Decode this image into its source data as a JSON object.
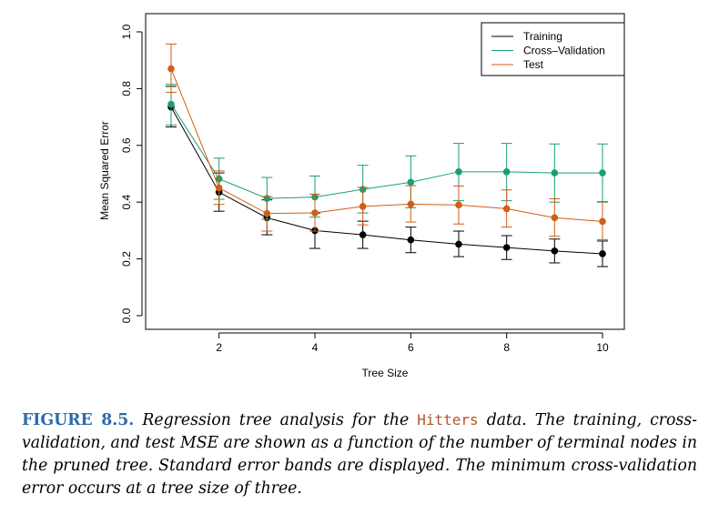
{
  "chart_data": {
    "type": "line",
    "xlabel": "Tree Size",
    "ylabel": "Mean Squared Error",
    "xlim": [
      0.6,
      10.4
    ],
    "ylim": [
      0.0,
      1.0
    ],
    "x_ticks": [
      2,
      4,
      6,
      8,
      10
    ],
    "y_ticks": [
      0.0,
      0.2,
      0.4,
      0.6,
      0.8,
      1.0
    ],
    "y_tick_labels": [
      "0.0",
      "0.2",
      "0.4",
      "0.6",
      "0.8",
      "1.0"
    ],
    "x": [
      1,
      2,
      3,
      4,
      5,
      6,
      7,
      8,
      9,
      10
    ],
    "legend_position": "top-right",
    "series": [
      {
        "name": "Training",
        "color": "#000000",
        "values": [
          0.735,
          0.435,
          0.345,
          0.3,
          0.285,
          0.267,
          0.252,
          0.24,
          0.228,
          0.218
        ],
        "err_low": [
          0.665,
          0.368,
          0.285,
          0.237,
          0.237,
          0.222,
          0.208,
          0.198,
          0.186,
          0.173
        ],
        "err_high": [
          0.808,
          0.503,
          0.408,
          0.362,
          0.333,
          0.312,
          0.298,
          0.282,
          0.27,
          0.263
        ]
      },
      {
        "name": "Cross–Validation",
        "color": "#1a9e76",
        "values": [
          0.745,
          0.482,
          0.413,
          0.418,
          0.445,
          0.47,
          0.507,
          0.507,
          0.503,
          0.503
        ],
        "err_low": [
          0.672,
          0.41,
          0.34,
          0.347,
          0.362,
          0.38,
          0.405,
          0.405,
          0.4,
          0.4
        ],
        "err_high": [
          0.815,
          0.555,
          0.487,
          0.492,
          0.53,
          0.563,
          0.607,
          0.607,
          0.605,
          0.605
        ]
      },
      {
        "name": "Test",
        "color": "#d05e15",
        "values": [
          0.87,
          0.45,
          0.36,
          0.362,
          0.385,
          0.393,
          0.39,
          0.377,
          0.345,
          0.332
        ],
        "err_low": [
          0.787,
          0.392,
          0.298,
          0.298,
          0.32,
          0.33,
          0.323,
          0.312,
          0.28,
          0.268
        ],
        "err_high": [
          0.957,
          0.51,
          0.42,
          0.428,
          0.452,
          0.458,
          0.457,
          0.443,
          0.412,
          0.402
        ]
      }
    ]
  },
  "caption": {
    "label": "FIGURE 8.5.",
    "text_before": " Regression tree analysis for the ",
    "code_word": "Hitters",
    "text_after": " data. The training, cross-validation, and test MSE are shown as a function of the number of terminal nodes in the pruned tree. Standard error bands are displayed. The minimum cross-validation error occurs at a tree size of three."
  }
}
